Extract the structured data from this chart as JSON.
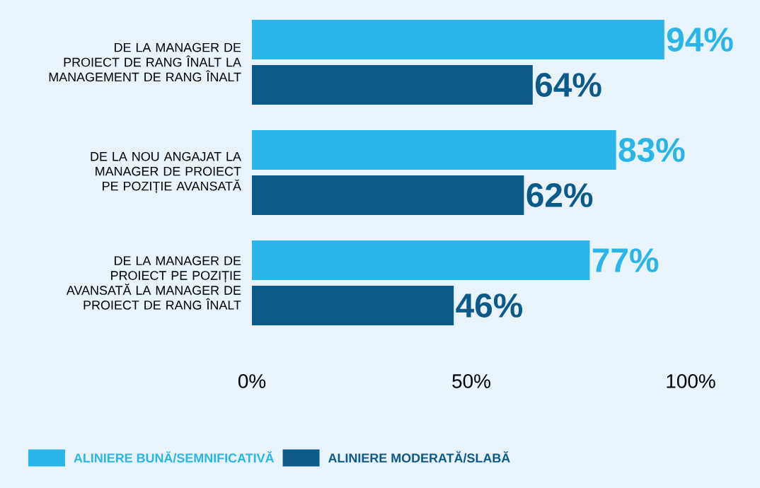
{
  "chart_data": {
    "type": "bar",
    "orientation": "horizontal",
    "categories": [
      "DE LA MANAGER DE PROIECT DE RANG ÎNALT LA MANAGEMENT DE RANG ÎNALT",
      "DE LA NOU ANGAJAT LA MANAGER DE PROIECT PE POZIȚIE AVANSATĂ",
      "DE LA MANAGER DE PROIECT PE POZIȚIE AVANSATĂ LA MANAGER DE PROIECT DE RANG ÎNALT"
    ],
    "series": [
      {
        "name": "ALINIERE BUNĂ/SEMNIFICATIVĂ",
        "color": "#29b5e8",
        "values": [
          94,
          83,
          77
        ],
        "value_labels": [
          "94%",
          "83%",
          "77%"
        ]
      },
      {
        "name": "ALINIERE MODERATĂ/SLABĂ",
        "color": "#0b5a8a",
        "values": [
          64,
          62,
          46
        ],
        "value_labels": [
          "64%",
          "62%",
          "46%"
        ]
      }
    ],
    "xlim": [
      0,
      100
    ],
    "xticks": [
      {
        "value": 0,
        "label": "0%"
      },
      {
        "value": 50,
        "label": "50%"
      },
      {
        "value": 100,
        "label": "100%"
      }
    ],
    "legend": "bottom"
  }
}
